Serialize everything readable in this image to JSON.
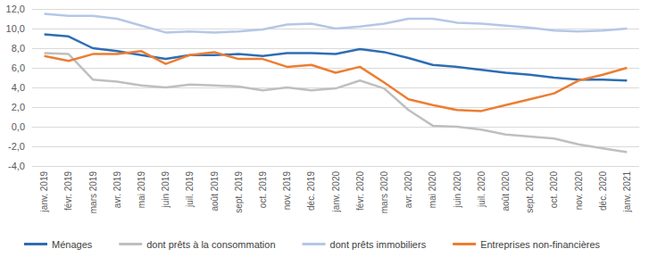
{
  "chart_data": {
    "type": "line",
    "categories": [
      "janv. 2019",
      "févr. 2019",
      "mars 2019",
      "avr. 2019",
      "mai 2019",
      "juin 2019",
      "juil. 2019",
      "août 2019",
      "sept. 2019",
      "oct. 2019",
      "nov. 2019",
      "déc. 2019",
      "janv. 2020",
      "févr. 2020",
      "mars 2020",
      "avr. 2020",
      "mai 2020",
      "juin 2020",
      "juil. 2020",
      "août 2020",
      "sept. 2020",
      "oct. 2020",
      "nov. 2020",
      "déc. 2020",
      "janv. 2021"
    ],
    "series": [
      {
        "name": "Ménages",
        "color": "#2E6DB4",
        "values": [
          9.4,
          9.2,
          8.0,
          7.7,
          7.3,
          6.9,
          7.3,
          7.3,
          7.4,
          7.2,
          7.5,
          7.5,
          7.4,
          7.9,
          7.6,
          7.0,
          6.3,
          6.1,
          5.8,
          5.5,
          5.3,
          5.0,
          4.8,
          4.8,
          4.7
        ]
      },
      {
        "name": "dont prêts à la consommation",
        "color": "#BFBFBF",
        "values": [
          7.5,
          7.4,
          4.8,
          4.6,
          4.2,
          4.0,
          4.3,
          4.2,
          4.1,
          3.7,
          4.0,
          3.7,
          3.9,
          4.7,
          3.9,
          1.7,
          0.1,
          0.0,
          -0.3,
          -0.8,
          -1.0,
          -1.2,
          -1.8,
          -2.2,
          -2.6
        ]
      },
      {
        "name": "dont prêts immobiliers",
        "color": "#B4C7E7",
        "values": [
          11.5,
          11.3,
          11.3,
          11.0,
          10.3,
          9.6,
          9.7,
          9.6,
          9.7,
          9.9,
          10.4,
          10.5,
          10.0,
          10.2,
          10.5,
          11.0,
          11.0,
          10.6,
          10.5,
          10.3,
          10.1,
          9.8,
          9.7,
          9.8,
          10.0
        ]
      },
      {
        "name": "Entreprises non-financières",
        "color": "#ED7D31",
        "values": [
          7.2,
          6.7,
          7.4,
          7.4,
          7.7,
          6.4,
          7.3,
          7.6,
          6.9,
          6.9,
          6.1,
          6.3,
          5.5,
          6.1,
          4.5,
          2.8,
          2.2,
          1.7,
          1.6,
          2.2,
          2.8,
          3.4,
          4.7,
          5.3,
          6.0
        ]
      }
    ],
    "ylim": [
      -4,
      12
    ],
    "yticks": [
      {
        "value": -4,
        "label": "-4,0"
      },
      {
        "value": -2,
        "label": "-2,0"
      },
      {
        "value": 0,
        "label": "0,0"
      },
      {
        "value": 2,
        "label": "2,0"
      },
      {
        "value": 4,
        "label": "4,0"
      },
      {
        "value": 6,
        "label": "6,0"
      },
      {
        "value": 8,
        "label": "8,0"
      },
      {
        "value": 10,
        "label": "10,0"
      },
      {
        "value": 12,
        "label": "12,0"
      }
    ],
    "grid": true,
    "legend": "bottom"
  }
}
